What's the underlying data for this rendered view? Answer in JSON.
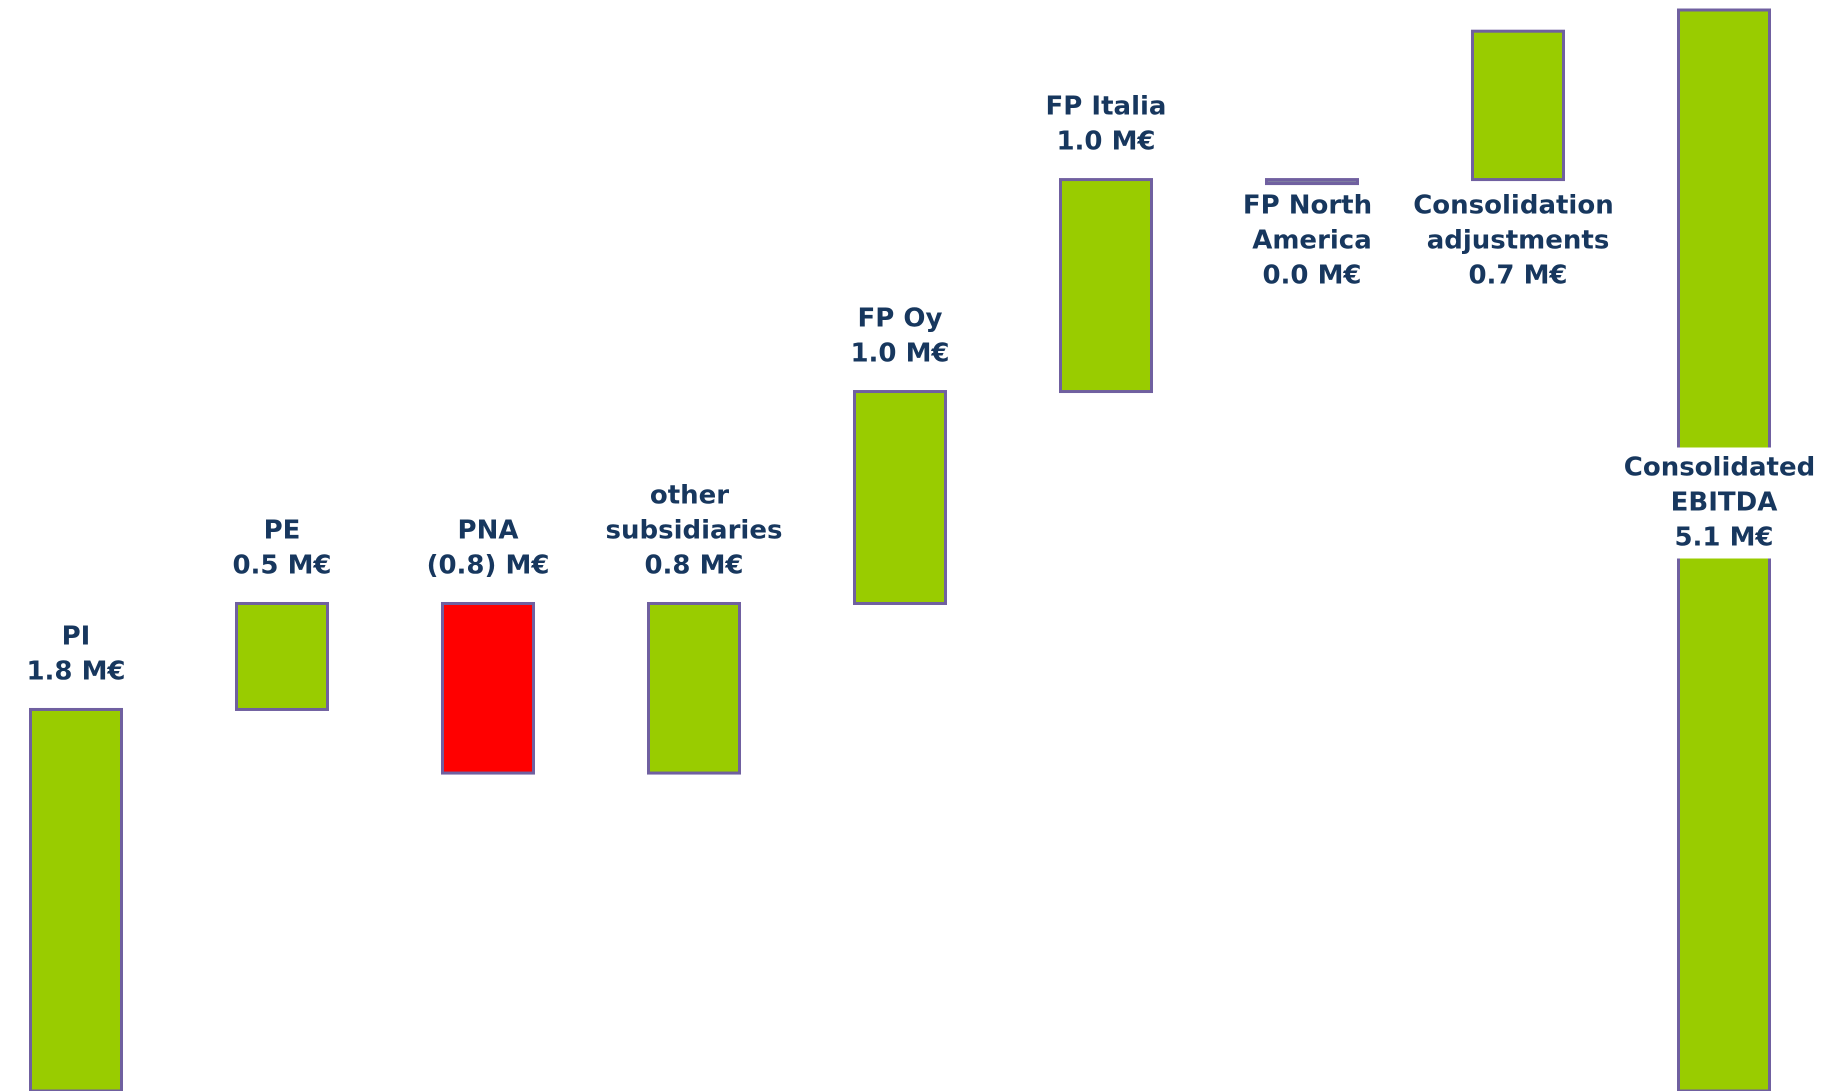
{
  "chart_data": {
    "type": "waterfall",
    "categories": [
      "PI",
      "PE",
      "PNA",
      "other subsidiaries",
      "FP Oy",
      "FP Italia",
      "FP North America",
      "Consolidation adjustments",
      "Consolidated EBITDA"
    ],
    "values": [
      1.8,
      0.5,
      -0.8,
      0.8,
      1.0,
      1.0,
      0.0,
      0.7,
      5.1
    ],
    "value_labels": [
      "1.8 M€",
      "0.5 M€",
      "(0.8) M€",
      "0.8 M€",
      "1.0 M€",
      "1.0 M€",
      "0.0 M€",
      "0.7 M€",
      "5.1 M€"
    ],
    "color": "#99cc00",
    "negative_color": "#ff0000"
  }
}
